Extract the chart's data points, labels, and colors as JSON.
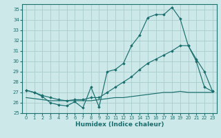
{
  "xlabel": "Humidex (Indice chaleur)",
  "bg_color": "#cce8e8",
  "grid_color": "#aacccc",
  "line_color": "#1a6e6e",
  "xlim": [
    -0.5,
    23.5
  ],
  "ylim": [
    25,
    35.5
  ],
  "xticks": [
    0,
    1,
    2,
    3,
    4,
    5,
    6,
    7,
    8,
    9,
    10,
    11,
    12,
    13,
    14,
    15,
    16,
    17,
    18,
    19,
    20,
    21,
    22,
    23
  ],
  "yticks": [
    25,
    26,
    27,
    28,
    29,
    30,
    31,
    32,
    33,
    34,
    35
  ],
  "line1_x": [
    0,
    1,
    2,
    3,
    4,
    5,
    6,
    7,
    8,
    9,
    10,
    11,
    12,
    13,
    14,
    15,
    16,
    17,
    18,
    19,
    20,
    21,
    22,
    23
  ],
  "line1_y": [
    27.2,
    27.0,
    26.6,
    26.0,
    25.8,
    25.7,
    26.1,
    25.5,
    27.5,
    25.6,
    29.0,
    29.2,
    29.8,
    31.5,
    32.5,
    34.2,
    34.5,
    34.5,
    35.2,
    34.1,
    31.5,
    30.2,
    29.0,
    27.1
  ],
  "line2_x": [
    0,
    1,
    2,
    3,
    4,
    5,
    6,
    7,
    8,
    9,
    10,
    11,
    12,
    13,
    14,
    15,
    16,
    17,
    18,
    19,
    20,
    21,
    22,
    23
  ],
  "line2_y": [
    27.2,
    27.0,
    26.7,
    26.5,
    26.3,
    26.2,
    26.3,
    26.3,
    26.5,
    26.5,
    27.0,
    27.5,
    28.0,
    28.5,
    29.2,
    29.8,
    30.2,
    30.6,
    31.0,
    31.5,
    31.5,
    30.0,
    27.5,
    27.1
  ],
  "line3_x": [
    0,
    1,
    2,
    3,
    4,
    5,
    6,
    7,
    8,
    9,
    10,
    11,
    12,
    13,
    14,
    15,
    16,
    17,
    18,
    19,
    20,
    21,
    22,
    23
  ],
  "line3_y": [
    26.5,
    26.4,
    26.3,
    26.2,
    26.2,
    26.2,
    26.2,
    26.2,
    26.2,
    26.3,
    26.4,
    26.5,
    26.5,
    26.6,
    26.7,
    26.8,
    26.9,
    27.0,
    27.0,
    27.1,
    27.0,
    27.0,
    27.0,
    27.0
  ]
}
